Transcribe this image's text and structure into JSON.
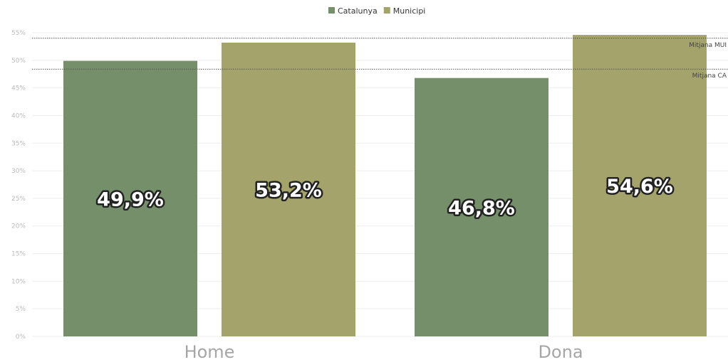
{
  "chart_data": {
    "type": "bar",
    "categories": [
      "Home",
      "Dona"
    ],
    "series": [
      {
        "name": "Catalunya",
        "color": "#748f69",
        "values": [
          49.9,
          46.8
        ],
        "labels": [
          "49,9%",
          "46,8%"
        ]
      },
      {
        "name": "Municipi",
        "color": "#a4a36b",
        "values": [
          53.2,
          54.6
        ],
        "labels": [
          "53,2%",
          "54,6%"
        ]
      }
    ],
    "ylim": [
      0,
      55
    ],
    "yticks": [
      0,
      5,
      10,
      15,
      20,
      25,
      30,
      35,
      40,
      45,
      50,
      55
    ],
    "ytick_labels": [
      "0%",
      "5%",
      "10%",
      "15%",
      "20%",
      "25%",
      "30%",
      "35%",
      "40%",
      "45%",
      "50%",
      "55%"
    ],
    "reference_lines": [
      {
        "label": "Mitjana MUI",
        "value": 54.0
      },
      {
        "label": "Mitjana CA",
        "value": 48.4
      }
    ],
    "legend_position": "top-center",
    "grid": true
  }
}
